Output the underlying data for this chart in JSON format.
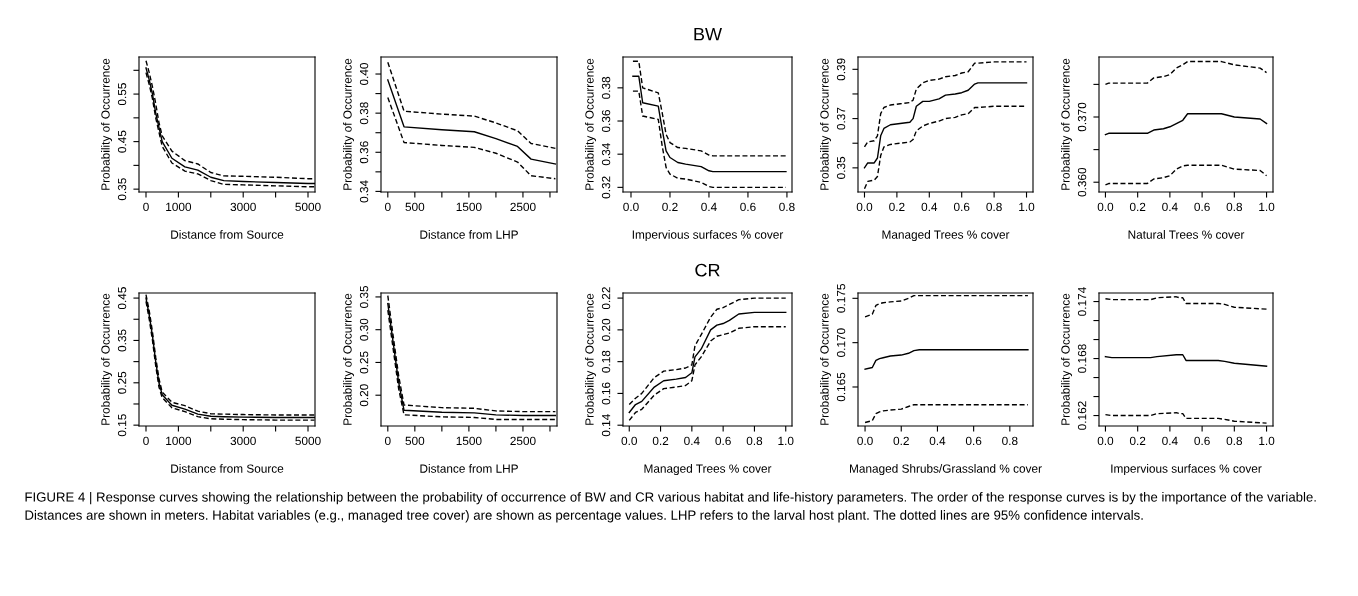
{
  "chart_data": [
    {
      "type": "line",
      "xlabel": "Distance from Source",
      "ylabel": "Probability of Occurrence",
      "xlim": [
        -216,
        5216
      ],
      "ylim": [
        0.344,
        0.628
      ],
      "xticks": [
        0,
        1000,
        {
          "value": 2000,
          "label": null
        },
        3000,
        {
          "value": 4000,
          "label": null
        },
        5000
      ],
      "yticks": [
        0.35,
        {
          "value": 0.4,
          "label": null
        },
        0.45,
        {
          "value": 0.5,
          "label": null
        },
        0.55,
        {
          "value": 0.6,
          "label": null
        }
      ],
      "annotations": [
        "FIGURE 4 | Response curves showing the relationship between the probability of occurrence of BW and CR various habitat and life-history parameters. The order of the response curves is by the importance of the variable. Distances are shown in meters. Habitat variables (e.g., managed tree cover) are shown as percentage values. LHP refers to the larval host plant. The dotted lines are 95% confidence intervals."
      ],
      "series": [
        {
          "color": "#000000",
          "line_style": "solid",
          "x": [
            0,
            100,
            200,
            300,
            400,
            500,
            800,
            1200,
            1600,
            2000,
            2400,
            3000,
            4000,
            5000,
            5200
          ],
          "values": [
            0.605,
            0.58,
            0.55,
            0.51,
            0.48,
            0.45,
            0.415,
            0.397,
            0.39,
            0.375,
            0.368,
            0.366,
            0.364,
            0.362,
            0.362
          ]
        },
        {
          "color": "#000000",
          "line_style": "dashed",
          "x": [
            0,
            100,
            200,
            300,
            400,
            500,
            800,
            1200,
            1600,
            2000,
            2400,
            3000,
            4000,
            5000,
            5200
          ],
          "values": [
            0.62,
            0.595,
            0.565,
            0.53,
            0.49,
            0.462,
            0.43,
            0.41,
            0.403,
            0.385,
            0.378,
            0.377,
            0.375,
            0.372,
            0.372
          ]
        },
        {
          "color": "#000000",
          "line_style": "dashed",
          "x": [
            0,
            100,
            200,
            300,
            400,
            500,
            800,
            1200,
            1600,
            2000,
            2400,
            3000,
            4000,
            5000,
            5200
          ],
          "values": [
            0.595,
            0.57,
            0.54,
            0.5,
            0.47,
            0.44,
            0.405,
            0.388,
            0.382,
            0.368,
            0.36,
            0.359,
            0.357,
            0.355,
            0.355
          ]
        }
      ]
    },
    {
      "type": "line",
      "xlabel": "Distance from LHP",
      "ylabel": "Probability of Occurrence",
      "xlim": [
        -126,
        3130
      ],
      "ylim": [
        0.3397,
        0.4087
      ],
      "xticks": [
        0,
        500,
        {
          "value": 1000,
          "label": null
        },
        1500,
        {
          "value": 2000,
          "label": null
        },
        2500,
        {
          "value": 3000,
          "label": null
        }
      ],
      "yticks": [
        0.34,
        {
          "value": 0.35,
          "label": null
        },
        0.36,
        {
          "value": 0.37,
          "label": null
        },
        0.38,
        {
          "value": 0.39,
          "label": null
        },
        {
          "value": 0.4,
          "label": "0.40"
        }
      ],
      "series": [
        {
          "color": "#000000",
          "line_style": "solid",
          "x": [
            0,
            300,
            1000,
            1600,
            2000,
            2400,
            2650,
            3100
          ],
          "values": [
            0.397,
            0.373,
            0.3715,
            0.3705,
            0.367,
            0.363,
            0.3565,
            0.354
          ]
        },
        {
          "color": "#000000",
          "line_style": "dashed",
          "x": [
            0,
            300,
            1000,
            1600,
            2000,
            2400,
            2650,
            3100
          ],
          "values": [
            0.406,
            0.381,
            0.3795,
            0.3785,
            0.375,
            0.371,
            0.3645,
            0.362
          ]
        },
        {
          "color": "#000000",
          "line_style": "dashed",
          "x": [
            0,
            300,
            1000,
            1600,
            2000,
            2400,
            2650,
            3100
          ],
          "values": [
            0.388,
            0.365,
            0.3635,
            0.3625,
            0.3595,
            0.355,
            0.348,
            0.3465
          ]
        }
      ]
    },
    {
      "type": "line",
      "title": "BW",
      "xlabel": "Impervious surfaces % cover",
      "ylabel": "Probability of Occurrence",
      "xlim": [
        -0.041,
        0.826
      ],
      "ylim": [
        0.3172,
        0.3986
      ],
      "xticks": [
        {
          "value": 0,
          "label": "0.0"
        },
        0.2,
        0.4,
        0.6,
        0.8
      ],
      "yticks": [
        0.32,
        0.34,
        0.36,
        0.38
      ],
      "series": [
        {
          "color": "#000000",
          "line_style": "solid",
          "x": [
            0.01,
            0.04,
            0.06,
            0.14,
            0.16,
            0.18,
            0.2,
            0.24,
            0.28,
            0.36,
            0.4,
            0.42,
            0.795
          ],
          "values": [
            0.387,
            0.387,
            0.371,
            0.369,
            0.355,
            0.342,
            0.338,
            0.335,
            0.334,
            0.3325,
            0.33,
            0.3295,
            0.3295
          ]
        },
        {
          "color": "#000000",
          "line_style": "dashed",
          "x": [
            0.01,
            0.04,
            0.06,
            0.14,
            0.16,
            0.18,
            0.2,
            0.24,
            0.28,
            0.36,
            0.4,
            0.42,
            0.795
          ],
          "values": [
            0.396,
            0.396,
            0.38,
            0.377,
            0.365,
            0.352,
            0.347,
            0.344,
            0.3435,
            0.342,
            0.3395,
            0.339,
            0.339
          ]
        },
        {
          "color": "#000000",
          "line_style": "dashed",
          "x": [
            0.01,
            0.04,
            0.06,
            0.14,
            0.16,
            0.18,
            0.2,
            0.24,
            0.28,
            0.36,
            0.4,
            0.42,
            0.795
          ],
          "values": [
            0.378,
            0.378,
            0.363,
            0.361,
            0.345,
            0.332,
            0.328,
            0.3255,
            0.325,
            0.323,
            0.3205,
            0.32,
            0.32
          ]
        }
      ]
    },
    {
      "type": "line",
      "xlabel": "Managed Trees % cover",
      "ylabel": "Probability of Occurrence",
      "xlim": [
        -0.04,
        1.04
      ],
      "ylim": [
        0.3402,
        0.395
      ],
      "xticks": [
        {
          "value": 0,
          "label": "0.0"
        },
        0.2,
        0.4,
        0.6,
        0.8,
        {
          "value": 1,
          "label": "1.0"
        }
      ],
      "yticks": [
        0.35,
        {
          "value": 0.36,
          "label": null
        },
        0.37,
        {
          "value": 0.38,
          "label": null
        },
        0.39
      ],
      "series": [
        {
          "color": "#000000",
          "line_style": "solid",
          "x": [
            0,
            0.02,
            0.06,
            0.08,
            0.1,
            0.12,
            0.16,
            0.22,
            0.28,
            0.3,
            0.32,
            0.36,
            0.4,
            0.46,
            0.5,
            0.56,
            0.6,
            0.64,
            0.68,
            0.7,
            0.8,
            1.0
          ],
          "values": [
            0.35,
            0.352,
            0.352,
            0.354,
            0.363,
            0.366,
            0.3675,
            0.368,
            0.3685,
            0.37,
            0.375,
            0.377,
            0.377,
            0.378,
            0.3795,
            0.38,
            0.3805,
            0.3815,
            0.384,
            0.3845,
            0.3845,
            0.3845
          ]
        },
        {
          "color": "#000000",
          "line_style": "dashed",
          "x": [
            0,
            0.02,
            0.06,
            0.08,
            0.1,
            0.12,
            0.16,
            0.22,
            0.28,
            0.3,
            0.32,
            0.36,
            0.4,
            0.46,
            0.5,
            0.56,
            0.6,
            0.64,
            0.68,
            0.7,
            0.8,
            1.0
          ],
          "values": [
            0.3585,
            0.3605,
            0.361,
            0.363,
            0.372,
            0.3745,
            0.3755,
            0.376,
            0.3765,
            0.3775,
            0.382,
            0.3845,
            0.3855,
            0.386,
            0.387,
            0.3875,
            0.3885,
            0.389,
            0.3925,
            0.3925,
            0.393,
            0.393
          ]
        },
        {
          "color": "#000000",
          "line_style": "dashed",
          "x": [
            0,
            0.02,
            0.06,
            0.08,
            0.1,
            0.12,
            0.16,
            0.22,
            0.28,
            0.3,
            0.32,
            0.36,
            0.4,
            0.46,
            0.5,
            0.56,
            0.6,
            0.64,
            0.68,
            0.7,
            0.8,
            1.0
          ],
          "values": [
            0.3415,
            0.3445,
            0.345,
            0.3465,
            0.355,
            0.3585,
            0.3595,
            0.36,
            0.3605,
            0.3615,
            0.365,
            0.367,
            0.368,
            0.369,
            0.37,
            0.3705,
            0.3715,
            0.372,
            0.3745,
            0.3745,
            0.375,
            0.375
          ]
        }
      ]
    },
    {
      "type": "line",
      "xlabel": "Natural Trees % cover",
      "ylabel": "Probability of Occurrence",
      "xlim": [
        -0.04,
        1.04
      ],
      "ylim": [
        0.3585,
        0.3792
      ],
      "xticks": [
        {
          "value": 0,
          "label": "0.0"
        },
        0.2,
        0.4,
        0.6,
        0.8,
        {
          "value": 1,
          "label": "1.0"
        }
      ],
      "yticks": [
        {
          "value": 0.36,
          "label": "0.360"
        },
        {
          "value": 0.365,
          "label": null
        },
        {
          "value": 0.37,
          "label": "0.370"
        },
        {
          "value": 0.375,
          "label": null
        }
      ],
      "series": [
        {
          "color": "#000000",
          "line_style": "solid",
          "x": [
            0,
            0.02,
            0.26,
            0.3,
            0.36,
            0.4,
            0.44,
            0.48,
            0.51,
            0.72,
            0.8,
            0.96,
            1.0
          ],
          "values": [
            0.3673,
            0.3675,
            0.3675,
            0.368,
            0.3682,
            0.3685,
            0.369,
            0.3695,
            0.3705,
            0.3705,
            0.37,
            0.3697,
            0.369
          ]
        },
        {
          "color": "#000000",
          "line_style": "dashed",
          "x": [
            0,
            0.02,
            0.26,
            0.3,
            0.36,
            0.4,
            0.44,
            0.48,
            0.51,
            0.72,
            0.8,
            0.96,
            1.0
          ],
          "values": [
            0.375,
            0.3752,
            0.3752,
            0.376,
            0.3762,
            0.3765,
            0.3775,
            0.378,
            0.3785,
            0.3785,
            0.378,
            0.3775,
            0.3768
          ]
        },
        {
          "color": "#000000",
          "line_style": "dashed",
          "x": [
            0,
            0.02,
            0.26,
            0.3,
            0.36,
            0.4,
            0.44,
            0.48,
            0.51,
            0.72,
            0.8,
            0.96,
            1.0
          ],
          "values": [
            0.3596,
            0.3598,
            0.3598,
            0.3605,
            0.3607,
            0.361,
            0.362,
            0.3625,
            0.3626,
            0.3626,
            0.362,
            0.3618,
            0.361
          ]
        }
      ]
    },
    {
      "type": "line",
      "xlabel": "Distance from Source",
      "ylabel": "Probability of Occurrence",
      "xlim": [
        -216,
        5216
      ],
      "ylim": [
        0.148,
        0.462
      ],
      "xticks": [
        0,
        1000,
        {
          "value": 2000,
          "label": null
        },
        3000,
        {
          "value": 4000,
          "label": null
        },
        5000
      ],
      "yticks": [
        0.15,
        {
          "value": 0.2,
          "label": null
        },
        0.25,
        {
          "value": 0.3,
          "label": null
        },
        0.35,
        {
          "value": 0.4,
          "label": null
        },
        0.45
      ],
      "series": [
        {
          "color": "#000000",
          "line_style": "solid",
          "x": [
            0,
            100,
            200,
            300,
            400,
            500,
            800,
            1200,
            1600,
            2000,
            2400,
            3000,
            4000,
            5000,
            5200
          ],
          "values": [
            0.45,
            0.41,
            0.36,
            0.3,
            0.25,
            0.222,
            0.197,
            0.188,
            0.176,
            0.171,
            0.17,
            0.169,
            0.168,
            0.168,
            0.168
          ]
        },
        {
          "color": "#000000",
          "line_style": "dashed",
          "x": [
            0,
            100,
            200,
            300,
            400,
            500,
            800,
            1200,
            1600,
            2000,
            2400,
            3000,
            4000,
            5000,
            5200
          ],
          "values": [
            0.458,
            0.42,
            0.37,
            0.31,
            0.26,
            0.228,
            0.204,
            0.196,
            0.183,
            0.177,
            0.176,
            0.175,
            0.174,
            0.174,
            0.174
          ]
        },
        {
          "color": "#000000",
          "line_style": "dashed",
          "x": [
            0,
            100,
            200,
            300,
            400,
            500,
            800,
            1200,
            1600,
            2000,
            2400,
            3000,
            4000,
            5000,
            5200
          ],
          "values": [
            0.442,
            0.4,
            0.35,
            0.29,
            0.24,
            0.215,
            0.191,
            0.182,
            0.17,
            0.165,
            0.164,
            0.163,
            0.162,
            0.162,
            0.162
          ]
        }
      ]
    },
    {
      "type": "line",
      "xlabel": "Distance from LHP",
      "ylabel": "Probability of Occurrence",
      "xlim": [
        -126,
        3130
      ],
      "ylim": [
        0.153,
        0.356
      ],
      "xticks": [
        0,
        500,
        {
          "value": 1000,
          "label": null
        },
        1500,
        {
          "value": 2000,
          "label": null
        },
        2500,
        {
          "value": 3000,
          "label": null
        }
      ],
      "yticks": [
        {
          "value": 0.2,
          "label": "0.20"
        },
        0.25,
        {
          "value": 0.3,
          "label": "0.30"
        },
        0.35
      ],
      "series": [
        {
          "color": "#000000",
          "line_style": "solid",
          "x": [
            0,
            100,
            200,
            300,
            1000,
            1600,
            2000,
            2500,
            3100
          ],
          "values": [
            0.34,
            0.28,
            0.22,
            0.177,
            0.174,
            0.173,
            0.17,
            0.169,
            0.169
          ]
        },
        {
          "color": "#000000",
          "line_style": "dashed",
          "x": [
            0,
            100,
            200,
            300,
            1000,
            1600,
            2000,
            2500,
            3100
          ],
          "values": [
            0.352,
            0.29,
            0.23,
            0.185,
            0.181,
            0.18,
            0.176,
            0.175,
            0.175
          ]
        },
        {
          "color": "#000000",
          "line_style": "dashed",
          "x": [
            0,
            100,
            200,
            300,
            1000,
            1600,
            2000,
            2500,
            3100
          ],
          "values": [
            0.33,
            0.27,
            0.21,
            0.17,
            0.167,
            0.166,
            0.163,
            0.163,
            0.163
          ]
        }
      ]
    },
    {
      "type": "line",
      "title": "CR",
      "xlabel": "Managed Trees % cover",
      "ylabel": "Probability of Occurrence",
      "xlim": [
        -0.04,
        1.04
      ],
      "ylim": [
        0.1395,
        0.2232
      ],
      "xticks": [
        {
          "value": 0,
          "label": "0.0"
        },
        0.2,
        0.4,
        0.6,
        0.8,
        {
          "value": 1,
          "label": "1.0"
        }
      ],
      "yticks": [
        0.14,
        0.16,
        0.18,
        {
          "value": 0.2,
          "label": "0.20"
        },
        0.22
      ],
      "series": [
        {
          "color": "#000000",
          "line_style": "solid",
          "x": [
            0,
            0.04,
            0.08,
            0.16,
            0.22,
            0.3,
            0.36,
            0.4,
            0.42,
            0.46,
            0.52,
            0.56,
            0.6,
            0.64,
            0.7,
            0.8,
            1.0
          ],
          "values": [
            0.148,
            0.153,
            0.155,
            0.164,
            0.168,
            0.169,
            0.17,
            0.173,
            0.183,
            0.188,
            0.2,
            0.203,
            0.204,
            0.206,
            0.21,
            0.211,
            0.211
          ]
        },
        {
          "color": "#000000",
          "line_style": "dashed",
          "x": [
            0,
            0.04,
            0.08,
            0.16,
            0.22,
            0.3,
            0.36,
            0.4,
            0.42,
            0.46,
            0.52,
            0.56,
            0.6,
            0.64,
            0.7,
            0.8,
            1.0
          ],
          "values": [
            0.153,
            0.157,
            0.16,
            0.17,
            0.174,
            0.175,
            0.176,
            0.178,
            0.19,
            0.197,
            0.208,
            0.213,
            0.214,
            0.216,
            0.219,
            0.22,
            0.22
          ]
        },
        {
          "color": "#000000",
          "line_style": "dashed",
          "x": [
            0,
            0.04,
            0.08,
            0.16,
            0.22,
            0.3,
            0.36,
            0.4,
            0.42,
            0.46,
            0.52,
            0.56,
            0.6,
            0.64,
            0.7,
            0.8,
            1.0
          ],
          "values": [
            0.143,
            0.148,
            0.15,
            0.159,
            0.163,
            0.164,
            0.165,
            0.168,
            0.178,
            0.183,
            0.193,
            0.196,
            0.197,
            0.198,
            0.201,
            0.202,
            0.202
          ]
        }
      ]
    },
    {
      "type": "line",
      "xlabel": "Managed Shrubs/Grassland % cover",
      "ylabel": "Probability of Occurrence",
      "xlim": [
        -0.039,
        0.928
      ],
      "ylim": [
        0.1606,
        0.1756
      ],
      "xticks": [
        {
          "value": 0,
          "label": "0.0"
        },
        0.2,
        0.4,
        0.6,
        0.8
      ],
      "yticks": [
        0.165,
        {
          "value": 0.17,
          "label": "0.170"
        },
        0.175
      ],
      "series": [
        {
          "color": "#000000",
          "line_style": "solid",
          "x": [
            0,
            0.04,
            0.06,
            0.08,
            0.1,
            0.14,
            0.2,
            0.24,
            0.27,
            0.3,
            0.9
          ],
          "values": [
            0.167,
            0.1672,
            0.168,
            0.1682,
            0.1683,
            0.1685,
            0.1686,
            0.1688,
            0.1691,
            0.1692,
            0.1692
          ]
        },
        {
          "color": "#000000",
          "line_style": "dashed",
          "x": [
            0,
            0.04,
            0.06,
            0.08,
            0.1,
            0.14,
            0.2,
            0.24,
            0.27,
            0.3,
            0.9
          ],
          "values": [
            0.1729,
            0.1732,
            0.1742,
            0.1744,
            0.1745,
            0.1746,
            0.1747,
            0.175,
            0.1753,
            0.1753,
            0.1753
          ]
        },
        {
          "color": "#000000",
          "line_style": "dashed",
          "x": [
            0,
            0.04,
            0.06,
            0.08,
            0.1,
            0.14,
            0.2,
            0.24,
            0.27,
            0.3,
            0.9
          ],
          "values": [
            0.161,
            0.1612,
            0.162,
            0.1622,
            0.1623,
            0.1624,
            0.1625,
            0.1628,
            0.163,
            0.163,
            0.163
          ]
        }
      ]
    },
    {
      "type": "line",
      "xlabel": "Impervious surfaces % cover",
      "ylabel": "Probability of Occurrence",
      "xlim": [
        -0.04,
        1.04
      ],
      "ylim": [
        0.1609,
        0.1749
      ],
      "xticks": [
        {
          "value": 0,
          "label": "0.0"
        },
        0.2,
        0.4,
        0.6,
        0.8,
        {
          "value": 1,
          "label": "1.0"
        }
      ],
      "yticks": [
        0.162,
        {
          "value": 0.164,
          "label": null
        },
        {
          "value": 0.166,
          "label": null
        },
        0.168,
        {
          "value": 0.17,
          "label": null
        },
        {
          "value": 0.172,
          "label": null
        },
        0.174
      ],
      "series": [
        {
          "color": "#000000",
          "line_style": "solid",
          "x": [
            0,
            0.04,
            0.28,
            0.32,
            0.44,
            0.46,
            0.48,
            0.5,
            0.7,
            0.74,
            0.8,
            1.0
          ],
          "values": [
            0.1682,
            0.1681,
            0.1681,
            0.1682,
            0.1684,
            0.1684,
            0.1684,
            0.1678,
            0.1678,
            0.1677,
            0.1675,
            0.1672
          ]
        },
        {
          "color": "#000000",
          "line_style": "dashed",
          "x": [
            0,
            0.04,
            0.28,
            0.32,
            0.44,
            0.46,
            0.48,
            0.5,
            0.7,
            0.74,
            0.8,
            1.0
          ],
          "values": [
            0.1743,
            0.1742,
            0.1742,
            0.1744,
            0.1745,
            0.1744,
            0.1744,
            0.1738,
            0.1738,
            0.1737,
            0.1734,
            0.1732
          ]
        },
        {
          "color": "#000000",
          "line_style": "dashed",
          "x": [
            0,
            0.04,
            0.28,
            0.32,
            0.44,
            0.46,
            0.48,
            0.5,
            0.7,
            0.74,
            0.8,
            1.0
          ],
          "values": [
            0.1621,
            0.162,
            0.162,
            0.1622,
            0.1623,
            0.1622,
            0.1622,
            0.1617,
            0.1617,
            0.1616,
            0.1614,
            0.1612
          ]
        }
      ]
    }
  ]
}
